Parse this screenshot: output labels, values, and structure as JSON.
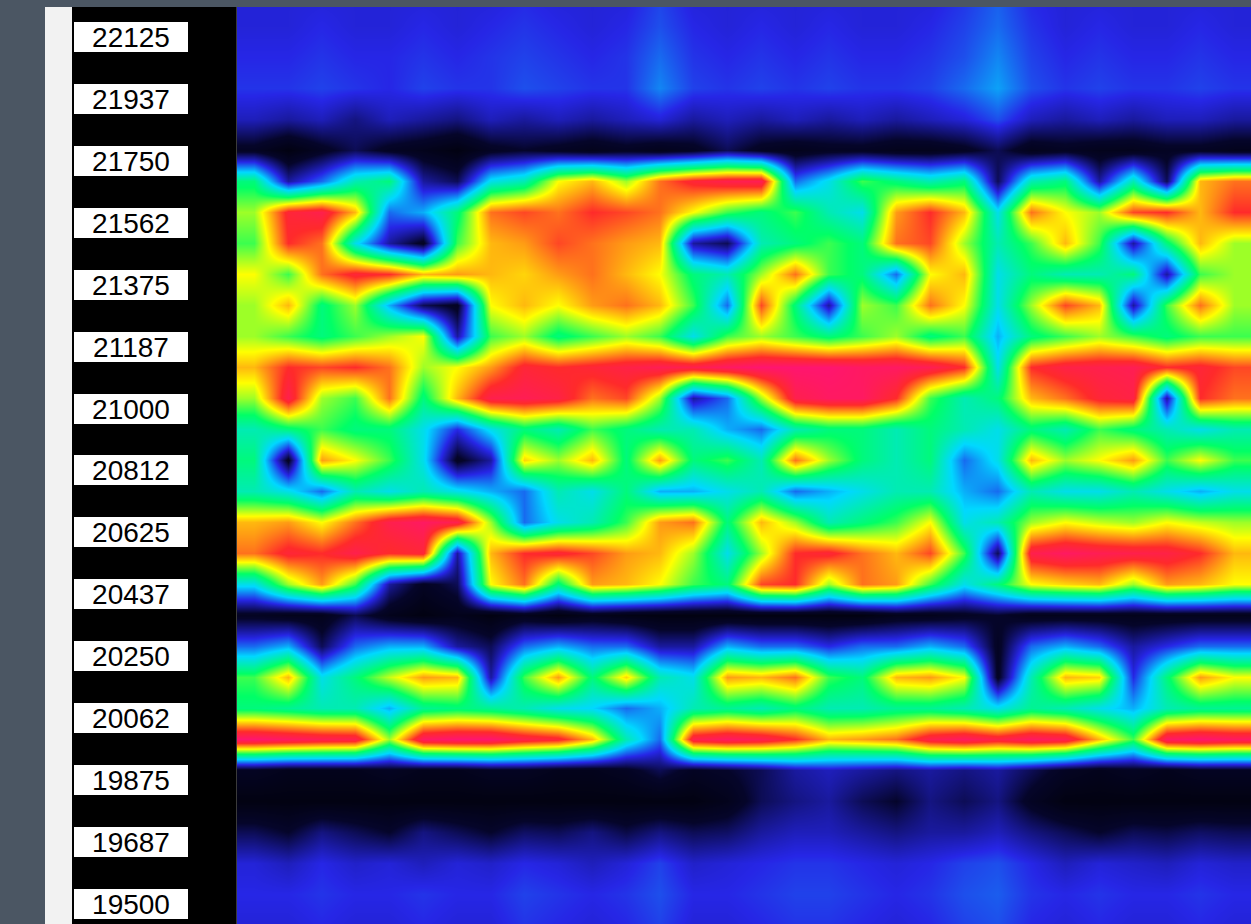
{
  "chart_data": {
    "type": "heatmap",
    "y": [
      19437.5,
      19531.25,
      19625,
      19718.75,
      19812.5,
      19906.25,
      20000,
      20093.75,
      20187.5,
      20281.25,
      20375,
      20468.75,
      20562.5,
      20656.25,
      20750,
      20843.75,
      20937.5,
      21031.25,
      21125,
      21218.75,
      21312.5,
      21406.25,
      21500,
      21593.75,
      21687.5,
      21781.25,
      21875,
      21968.75,
      22062.5,
      22156.25,
      22250
    ],
    "z": [
      [
        24,
        24,
        25,
        24,
        24,
        25,
        24,
        24,
        26,
        25,
        24,
        25,
        27,
        24,
        24,
        25,
        26,
        26,
        25,
        24,
        25,
        27,
        28,
        25,
        24,
        25,
        24,
        24,
        25,
        24
      ],
      [
        25,
        25,
        26,
        25,
        25,
        26,
        25,
        25,
        27,
        26,
        25,
        26,
        28,
        25,
        25,
        26,
        27,
        27,
        26,
        25,
        26,
        28,
        29,
        26,
        25,
        26,
        25,
        25,
        26,
        25
      ],
      [
        24,
        22,
        25,
        23,
        24,
        22,
        24,
        23,
        25,
        24,
        22,
        24,
        27,
        23,
        24,
        25,
        26,
        26,
        25,
        24,
        25,
        27,
        28,
        25,
        22,
        24,
        23,
        22,
        24,
        23
      ],
      [
        15,
        12,
        18,
        15,
        12,
        18,
        15,
        12,
        16,
        15,
        18,
        14,
        18,
        15,
        16,
        20,
        22,
        22,
        20,
        18,
        20,
        20,
        22,
        18,
        15,
        12,
        15,
        14,
        16,
        15
      ],
      [
        5,
        5,
        5,
        5,
        5,
        5,
        5,
        5,
        5,
        5,
        5,
        5,
        5,
        5,
        8,
        15,
        18,
        20,
        15,
        12,
        18,
        15,
        18,
        10,
        5,
        5,
        5,
        5,
        5,
        5
      ],
      [
        10,
        8,
        8,
        8,
        10,
        8,
        8,
        10,
        10,
        8,
        8,
        10,
        15,
        10,
        12,
        15,
        20,
        22,
        20,
        18,
        20,
        18,
        20,
        15,
        10,
        8,
        10,
        8,
        10,
        10
      ],
      [
        90,
        88,
        86,
        85,
        60,
        88,
        90,
        90,
        85,
        82,
        70,
        45,
        30,
        85,
        88,
        86,
        80,
        70,
        72,
        75,
        85,
        88,
        84,
        88,
        86,
        70,
        55,
        88,
        90,
        88
      ],
      [
        50,
        48,
        45,
        45,
        35,
        48,
        50,
        48,
        45,
        40,
        38,
        30,
        35,
        45,
        48,
        45,
        50,
        45,
        45,
        48,
        48,
        45,
        40,
        48,
        45,
        40,
        35,
        45,
        48,
        48
      ],
      [
        55,
        70,
        40,
        50,
        62,
        72,
        70,
        20,
        55,
        72,
        50,
        68,
        45,
        40,
        72,
        70,
        75,
        55,
        50,
        70,
        72,
        65,
        10,
        45,
        70,
        68,
        25,
        50,
        72,
        65
      ],
      [
        30,
        35,
        15,
        30,
        35,
        35,
        20,
        15,
        30,
        35,
        30,
        30,
        20,
        20,
        35,
        30,
        30,
        25,
        30,
        30,
        35,
        30,
        10,
        30,
        35,
        30,
        20,
        25,
        30,
        30
      ],
      [
        10,
        8,
        8,
        15,
        8,
        5,
        8,
        5,
        8,
        5,
        8,
        6,
        5,
        5,
        5,
        5,
        5,
        5,
        5,
        8,
        8,
        10,
        12,
        8,
        8,
        8,
        8,
        8,
        8,
        8
      ],
      [
        40,
        60,
        72,
        55,
        20,
        10,
        15,
        65,
        75,
        50,
        72,
        70,
        65,
        55,
        50,
        78,
        80,
        60,
        75,
        72,
        55,
        40,
        50,
        65,
        68,
        70,
        60,
        72,
        70,
        65
      ],
      [
        75,
        82,
        80,
        85,
        80,
        82,
        20,
        70,
        80,
        82,
        78,
        72,
        70,
        60,
        40,
        60,
        80,
        82,
        75,
        70,
        78,
        55,
        15,
        85,
        88,
        86,
        85,
        84,
        80,
        70
      ],
      [
        70,
        72,
        65,
        75,
        85,
        88,
        85,
        60,
        30,
        40,
        45,
        55,
        72,
        75,
        50,
        70,
        60,
        45,
        50,
        55,
        65,
        40,
        45,
        60,
        65,
        62,
        60,
        65,
        62,
        60
      ],
      [
        45,
        40,
        30,
        45,
        40,
        45,
        40,
        35,
        30,
        45,
        40,
        50,
        35,
        35,
        40,
        45,
        30,
        35,
        40,
        45,
        45,
        35,
        30,
        45,
        40,
        40,
        45,
        40,
        35,
        40
      ],
      [
        50,
        10,
        72,
        65,
        55,
        40,
        10,
        20,
        68,
        60,
        70,
        50,
        72,
        50,
        55,
        45,
        75,
        60,
        50,
        45,
        50,
        30,
        40,
        70,
        60,
        65,
        72,
        55,
        65,
        55
      ],
      [
        45,
        50,
        55,
        50,
        50,
        40,
        25,
        40,
        50,
        45,
        55,
        50,
        45,
        45,
        35,
        30,
        45,
        50,
        50,
        45,
        50,
        45,
        40,
        50,
        45,
        55,
        50,
        45,
        40,
        45
      ],
      [
        60,
        85,
        60,
        55,
        75,
        50,
        70,
        85,
        86,
        84,
        75,
        78,
        60,
        20,
        30,
        60,
        85,
        88,
        88,
        80,
        55,
        45,
        50,
        70,
        75,
        82,
        84,
        20,
        80,
        75
      ],
      [
        70,
        80,
        78,
        80,
        75,
        60,
        65,
        72,
        82,
        80,
        82,
        84,
        86,
        85,
        88,
        90,
        90,
        90,
        88,
        88,
        86,
        80,
        40,
        80,
        84,
        85,
        86,
        80,
        82,
        78
      ],
      [
        60,
        55,
        50,
        55,
        60,
        65,
        20,
        55,
        60,
        50,
        55,
        60,
        55,
        40,
        55,
        60,
        55,
        50,
        55,
        60,
        50,
        55,
        35,
        50,
        55,
        60,
        55,
        50,
        55,
        55
      ],
      [
        60,
        70,
        50,
        60,
        35,
        15,
        10,
        65,
        70,
        65,
        72,
        75,
        70,
        55,
        30,
        78,
        50,
        20,
        60,
        55,
        75,
        65,
        40,
        60,
        78,
        70,
        20,
        55,
        75,
        60
      ],
      [
        65,
        55,
        75,
        82,
        80,
        70,
        72,
        70,
        68,
        72,
        75,
        70,
        65,
        50,
        45,
        60,
        75,
        55,
        50,
        30,
        65,
        70,
        40,
        50,
        45,
        45,
        50,
        20,
        55,
        60
      ],
      [
        55,
        80,
        75,
        40,
        20,
        10,
        55,
        70,
        72,
        78,
        75,
        72,
        70,
        20,
        15,
        45,
        50,
        55,
        50,
        75,
        78,
        60,
        45,
        55,
        70,
        55,
        20,
        50,
        70,
        60
      ],
      [
        60,
        82,
        85,
        70,
        30,
        35,
        50,
        75,
        78,
        75,
        80,
        78,
        75,
        65,
        55,
        50,
        55,
        45,
        40,
        72,
        80,
        70,
        40,
        75,
        65,
        60,
        78,
        80,
        70,
        80
      ],
      [
        50,
        20,
        30,
        45,
        50,
        20,
        15,
        40,
        45,
        65,
        70,
        60,
        75,
        82,
        85,
        86,
        30,
        40,
        55,
        50,
        45,
        50,
        15,
        45,
        50,
        20,
        45,
        15,
        70,
        75
      ],
      [
        10,
        5,
        10,
        15,
        10,
        8,
        5,
        10,
        12,
        10,
        8,
        10,
        8,
        10,
        15,
        10,
        8,
        10,
        10,
        8,
        8,
        10,
        15,
        8,
        10,
        8,
        8,
        10,
        10,
        8
      ],
      [
        22,
        20,
        22,
        18,
        22,
        20,
        18,
        22,
        20,
        22,
        20,
        22,
        24,
        20,
        22,
        20,
        22,
        20,
        22,
        20,
        22,
        24,
        28,
        22,
        20,
        22,
        20,
        22,
        22,
        20
      ],
      [
        26,
        26,
        27,
        26,
        25,
        27,
        26,
        26,
        28,
        27,
        26,
        26,
        32,
        27,
        26,
        27,
        26,
        27,
        26,
        26,
        27,
        30,
        34,
        28,
        26,
        27,
        26,
        26,
        27,
        26
      ],
      [
        25,
        25,
        26,
        25,
        25,
        26,
        25,
        26,
        27,
        26,
        25,
        26,
        30,
        26,
        25,
        26,
        25,
        26,
        25,
        25,
        26,
        28,
        32,
        27,
        25,
        26,
        25,
        25,
        26,
        25
      ],
      [
        24,
        24,
        25,
        24,
        24,
        25,
        24,
        25,
        26,
        25,
        24,
        25,
        28,
        25,
        24,
        25,
        24,
        25,
        24,
        24,
        25,
        27,
        30,
        26,
        24,
        25,
        24,
        24,
        25,
        24
      ],
      [
        24,
        24,
        24,
        24,
        24,
        24,
        24,
        24,
        25,
        24,
        24,
        24,
        27,
        24,
        24,
        24,
        24,
        24,
        24,
        24,
        24,
        26,
        29,
        25,
        24,
        24,
        24,
        24,
        24,
        24
      ]
    ],
    "zlim": [
      0,
      100
    ],
    "ylim": [
      19440,
      22215
    ],
    "yticks": [
      22125,
      {
        "value": 21937.5,
        "label": "21937"
      },
      21750,
      {
        "value": 21562.5,
        "label": "21562"
      },
      21375,
      {
        "value": 21187.5,
        "label": "21187"
      },
      21000,
      {
        "value": 20812.5,
        "label": "20812"
      },
      20625,
      {
        "value": 20437.5,
        "label": "20437"
      },
      20250,
      {
        "value": 20062.5,
        "label": "20062"
      },
      19875,
      {
        "value": 19687.5,
        "label": "19687"
      },
      19500
    ],
    "grid": false,
    "tick_labels": "y"
  }
}
